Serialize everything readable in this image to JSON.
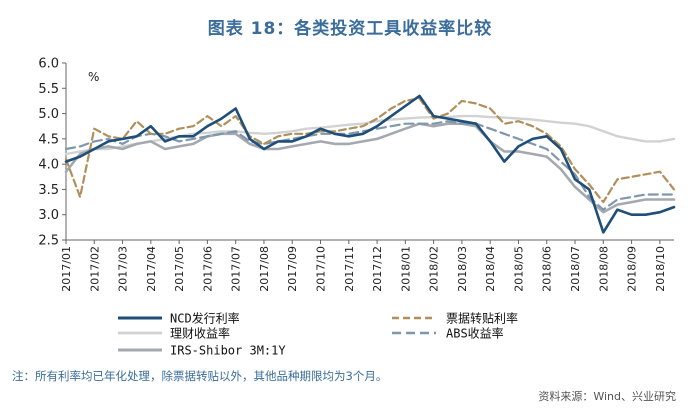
{
  "title": "图表 18：各类投资工具收益率比较",
  "footnote": "注：所有利率均已年化处理，除票据转贴以外，其他品种期限均为3个月。",
  "source": "资料来源：Wind、兴业研究",
  "chart_data": {
    "type": "line",
    "title": "图表 18：各类投资工具收益率比较",
    "ylabel": "%",
    "xlabel": "",
    "ylim": [
      2.5,
      6.0
    ],
    "yticks": [
      "6.0",
      "5.5",
      "5.0",
      "4.5",
      "4.0",
      "3.5",
      "3.0",
      "2.5"
    ],
    "xtick_labels": [
      "2017/01",
      "2017/02",
      "2017/03",
      "2017/04",
      "2017/05",
      "2017/06",
      "2017/07",
      "2017/08",
      "2017/09",
      "2017/10",
      "2017/11",
      "2017/12",
      "2018/01",
      "2018/02",
      "2018/03",
      "2018/04",
      "2018/05",
      "2018/06",
      "2018/07",
      "2018/08",
      "2018/09",
      "2018/10"
    ],
    "x": [
      0,
      0.5,
      1,
      1.5,
      2,
      2.5,
      3,
      3.5,
      4,
      4.5,
      5,
      5.5,
      6,
      6.5,
      7,
      7.5,
      8,
      8.5,
      9,
      9.5,
      10,
      10.5,
      11,
      11.5,
      12,
      12.5,
      13,
      13.5,
      14,
      14.5,
      15,
      15.5,
      16,
      16.5,
      17,
      17.5,
      18,
      18.5,
      19,
      19.5,
      20,
      20.5,
      21,
      21.5
    ],
    "series": [
      {
        "name": "NCD发行利率",
        "color": "#1f4e79",
        "dash": "solid",
        "width": 2.6,
        "values": [
          4.05,
          4.15,
          4.3,
          4.45,
          4.5,
          4.55,
          4.75,
          4.45,
          4.55,
          4.55,
          4.75,
          4.9,
          5.1,
          4.5,
          4.3,
          4.45,
          4.45,
          4.55,
          4.7,
          4.6,
          4.55,
          4.6,
          4.75,
          4.95,
          5.15,
          5.35,
          4.95,
          4.9,
          4.85,
          4.8,
          4.45,
          4.05,
          4.35,
          4.5,
          4.55,
          4.3,
          3.7,
          3.5,
          2.65,
          3.1,
          3.0,
          3.0,
          3.05,
          3.15
        ]
      },
      {
        "name": "票据转贴利率",
        "color": "#b08f5a",
        "dash": "7,4",
        "width": 2.2,
        "values": [
          4.1,
          3.35,
          4.7,
          4.55,
          4.5,
          4.85,
          4.6,
          4.6,
          4.7,
          4.75,
          4.95,
          4.75,
          4.95,
          4.55,
          4.4,
          4.55,
          4.6,
          4.6,
          4.65,
          4.65,
          4.7,
          4.75,
          4.9,
          5.1,
          5.25,
          5.3,
          4.9,
          5.0,
          5.25,
          5.2,
          5.1,
          4.8,
          4.85,
          4.75,
          4.6,
          4.35,
          3.9,
          3.6,
          3.25,
          3.7,
          3.75,
          3.8,
          3.85,
          3.5
        ]
      },
      {
        "name": "理财收益率",
        "color": "#d2d2d2",
        "dash": "solid",
        "width": 2.4,
        "values": [
          4.2,
          4.25,
          4.3,
          4.3,
          4.35,
          4.4,
          4.45,
          4.5,
          4.55,
          4.6,
          4.62,
          4.65,
          4.65,
          4.62,
          4.6,
          4.62,
          4.65,
          4.7,
          4.72,
          4.75,
          4.78,
          4.8,
          4.85,
          4.88,
          4.9,
          4.92,
          4.93,
          4.93,
          4.95,
          4.95,
          4.93,
          4.92,
          4.9,
          4.88,
          4.85,
          4.82,
          4.8,
          4.75,
          4.65,
          4.55,
          4.5,
          4.45,
          4.45,
          4.5
        ]
      },
      {
        "name": "ABS收益率",
        "color": "#7f97ad",
        "dash": "9,5",
        "width": 2.2,
        "values": [
          4.3,
          4.35,
          4.45,
          4.5,
          4.4,
          4.55,
          4.6,
          4.55,
          4.45,
          4.5,
          4.55,
          4.6,
          4.65,
          4.45,
          4.4,
          4.45,
          4.5,
          4.55,
          4.6,
          4.6,
          4.6,
          4.65,
          4.7,
          4.75,
          4.8,
          4.8,
          4.8,
          4.85,
          4.8,
          4.8,
          4.7,
          4.6,
          4.5,
          4.4,
          4.3,
          4.05,
          3.8,
          3.35,
          3.1,
          3.3,
          3.35,
          3.4,
          3.4,
          3.4
        ]
      },
      {
        "name": "IRS-Shibor 3M:1Y",
        "color": "#a4a9b0",
        "dash": "solid",
        "width": 2.6,
        "values": [
          3.85,
          4.2,
          4.3,
          4.35,
          4.3,
          4.4,
          4.45,
          4.3,
          4.35,
          4.4,
          4.55,
          4.6,
          4.6,
          4.4,
          4.3,
          4.3,
          4.35,
          4.4,
          4.45,
          4.4,
          4.4,
          4.45,
          4.5,
          4.6,
          4.7,
          4.8,
          4.75,
          4.8,
          4.8,
          4.75,
          4.45,
          4.25,
          4.25,
          4.2,
          4.15,
          3.9,
          3.55,
          3.3,
          3.05,
          3.2,
          3.25,
          3.3,
          3.3,
          3.3
        ]
      }
    ],
    "legend_position": "bottom"
  }
}
